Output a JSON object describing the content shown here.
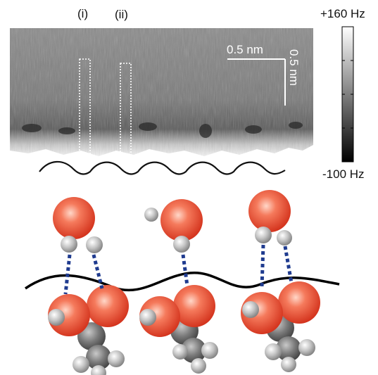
{
  "panel_labels": {
    "first": "(i)",
    "second": "(ii)"
  },
  "scale_bars": {
    "horizontal": "0.5 nm",
    "vertical": "0.5 nm"
  },
  "colorbar": {
    "max_label": "+160 Hz",
    "min_label": "-100 Hz",
    "max_value": 160,
    "min_value": -100,
    "unit": "Hz"
  },
  "colors": {
    "oxygen": "#ee5a3f",
    "hydrogen": "#b5b5b5",
    "carbon": "#6f6f6f",
    "hbond": "#1f3b8f",
    "interface_line": "#000000"
  }
}
